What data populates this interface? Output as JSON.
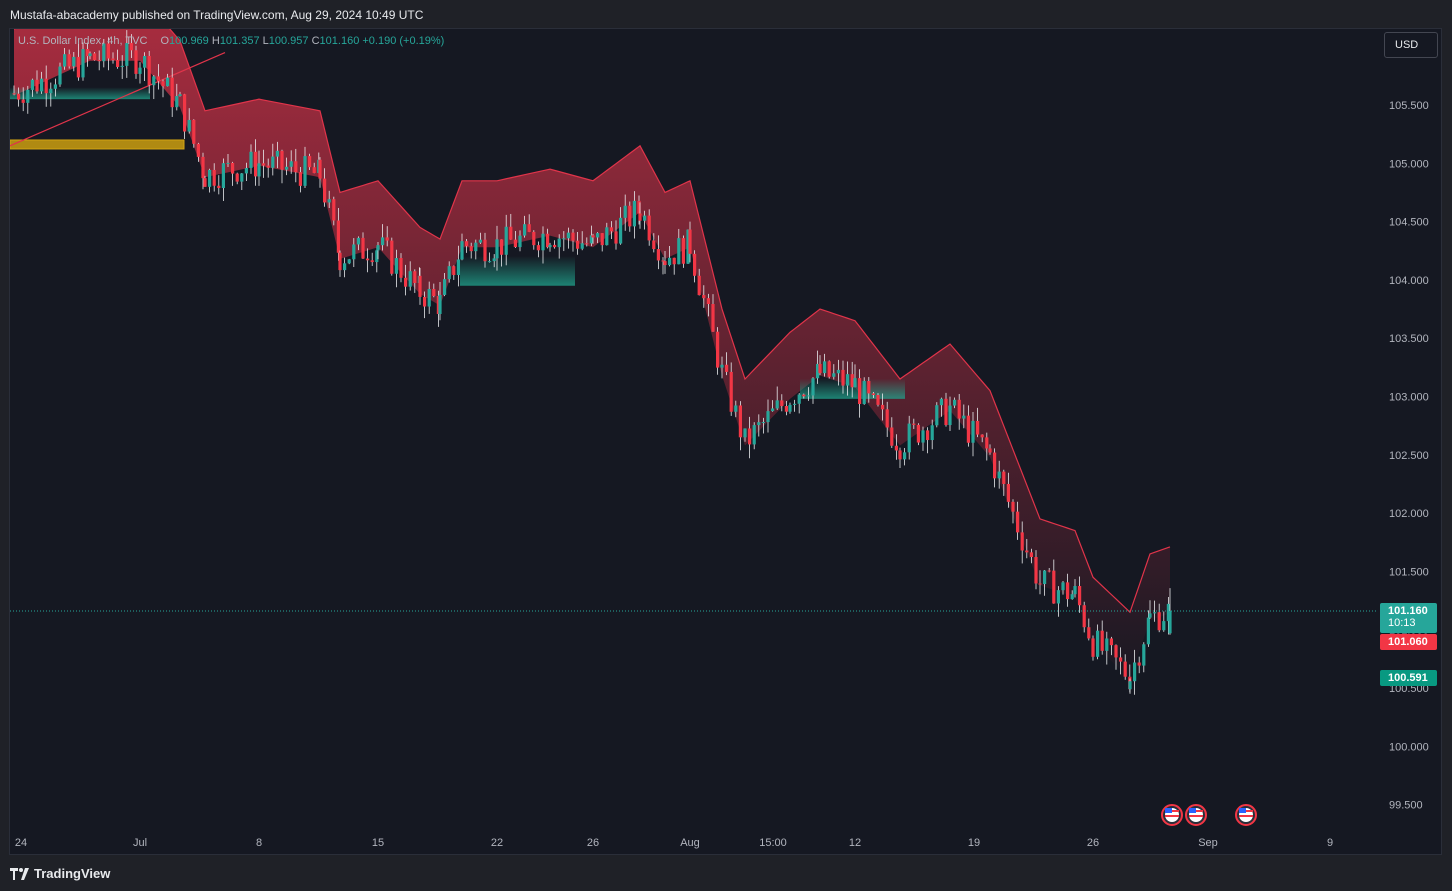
{
  "header": {
    "published_by": "Mustafa-abacademy published on TradingView.com, Aug 29, 2024 10:49 UTC"
  },
  "legend": {
    "symbol": "U.S. Dollar Index, 4h, TVC",
    "o_label": "O",
    "open": "100.969",
    "h_label": "H",
    "high": "101.357",
    "l_label": "L",
    "low": "100.957",
    "c_label": "C",
    "close": "101.160",
    "change": "+0.190 (+0.19%)"
  },
  "currency_button": "USD",
  "footer": {
    "brand": "TradingView"
  },
  "colors": {
    "up": "#26a69a",
    "down": "#f23645",
    "cloud_down": "#e0344a",
    "cloud_up": "#20a68f",
    "zone": "#b08a12",
    "trendline": "#e0344a"
  },
  "price_tags": {
    "last_price": "101.160",
    "countdown": "10:13",
    "level_red": "101.060",
    "level_green": "100.591"
  },
  "events": {
    "icon": "us-flag-icon",
    "count": 3
  },
  "chart_data": {
    "type": "candlestick",
    "symbol": "U.S. Dollar Index",
    "interval": "4h",
    "exchange": "TVC",
    "ylim": [
      99.3,
      106.1
    ],
    "y_ticks": [
      "105.500",
      "105.000",
      "104.500",
      "104.000",
      "103.500",
      "103.000",
      "102.500",
      "102.000",
      "101.500",
      "101.000",
      "100.500",
      "100.000",
      "99.500"
    ],
    "x_ticks": [
      "24",
      "Jul",
      "8",
      "15",
      "22",
      "26",
      "Aug",
      "15:00",
      "12",
      "19",
      "26",
      "Sep",
      "9"
    ],
    "last": {
      "open": 100.969,
      "high": 101.357,
      "low": 100.957,
      "close": 101.16,
      "change": 0.19,
      "change_pct": 0.19
    },
    "approx_close_path": [
      {
        "date": "Jun 24",
        "close": 105.6
      },
      {
        "date": "Jun 27",
        "close": 105.9
      },
      {
        "date": "Jul 1",
        "close": 105.9
      },
      {
        "date": "Jul 3",
        "close": 105.5
      },
      {
        "date": "Jul 5",
        "close": 104.9
      },
      {
        "date": "Jul 8",
        "close": 105.0
      },
      {
        "date": "Jul 11",
        "close": 104.9
      },
      {
        "date": "Jul 12",
        "close": 104.2
      },
      {
        "date": "Jul 15",
        "close": 104.3
      },
      {
        "date": "Jul 17",
        "close": 103.9
      },
      {
        "date": "Jul 18",
        "close": 103.8
      },
      {
        "date": "Jul 19",
        "close": 104.3
      },
      {
        "date": "Jul 22",
        "close": 104.3
      },
      {
        "date": "Jul 24",
        "close": 104.4
      },
      {
        "date": "Jul 26",
        "close": 104.3
      },
      {
        "date": "Jul 29",
        "close": 104.6
      },
      {
        "date": "Jul 31",
        "close": 104.2
      },
      {
        "date": "Aug 1",
        "close": 104.3
      },
      {
        "date": "Aug 2",
        "close": 103.2
      },
      {
        "date": "Aug 5",
        "close": 102.6
      },
      {
        "date": "Aug 6",
        "close": 103.0
      },
      {
        "date": "Aug 8",
        "close": 103.2
      },
      {
        "date": "Aug 12",
        "close": 103.1
      },
      {
        "date": "Aug 14",
        "close": 102.6
      },
      {
        "date": "Aug 16",
        "close": 102.9
      },
      {
        "date": "Aug 19",
        "close": 102.5
      },
      {
        "date": "Aug 21",
        "close": 101.4
      },
      {
        "date": "Aug 23",
        "close": 101.3
      },
      {
        "date": "Aug 26",
        "close": 100.9
      },
      {
        "date": "Aug 27",
        "close": 100.6
      },
      {
        "date": "Aug 28",
        "close": 101.1
      },
      {
        "date": "Aug 29",
        "close": 101.16
      }
    ],
    "horizontal_zone": {
      "from": 105.15,
      "to": 105.2
    },
    "price_lines": [
      101.16,
      101.06,
      100.591
    ]
  }
}
